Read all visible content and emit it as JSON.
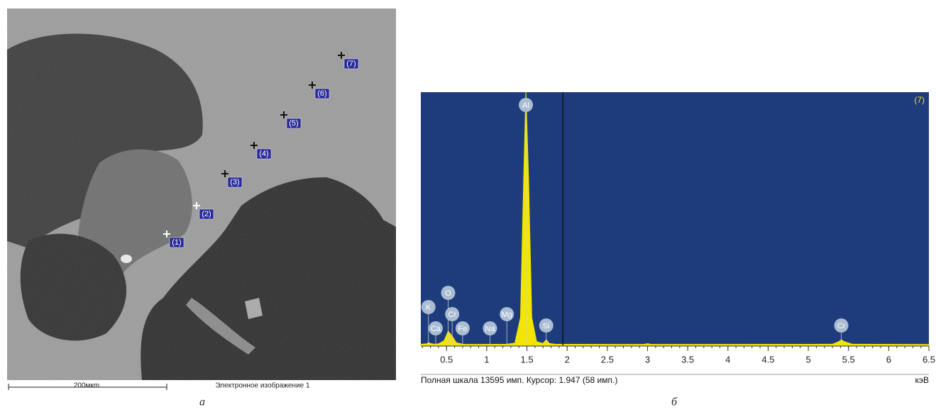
{
  "image": {
    "points": [
      "(1)",
      "(2)",
      "(3)",
      "(4)",
      "(5)",
      "(6)",
      "(7)"
    ],
    "scale_bar": "200мкm",
    "caption": "Электронное изображение 1",
    "panel_label": "а"
  },
  "chart_data": {
    "type": "area",
    "panel_label": "б",
    "corner_label": "(7)",
    "x_unit": "кэВ",
    "status": "Полная шкала 13595 имп. Курсор: 1.947  (58 имп.)",
    "cursor": 1.947,
    "color": "#f2e600",
    "background": "#1e3b7c",
    "x": [
      0.18,
      0.25,
      0.28,
      0.3,
      0.35,
      0.4,
      0.47,
      0.52,
      0.57,
      0.62,
      0.7,
      0.75,
      1.0,
      1.25,
      1.35,
      1.42,
      1.46,
      1.487,
      1.52,
      1.56,
      1.62,
      1.7,
      1.74,
      1.78,
      1.85,
      2.5,
      2.95,
      3.0,
      3.05,
      4,
      5.3,
      5.38,
      5.41,
      5.45,
      5.55,
      6.5
    ],
    "values": [
      60,
      80,
      150,
      100,
      60,
      80,
      250,
      760,
      500,
      150,
      60,
      50,
      50,
      60,
      120,
      1500,
      9000,
      13595,
      9000,
      1500,
      200,
      100,
      300,
      100,
      60,
      50,
      50,
      90,
      50,
      50,
      60,
      200,
      300,
      200,
      60,
      50
    ],
    "xlim": [
      0.18,
      6.5
    ],
    "ylim": [
      0,
      13595
    ],
    "xticks": [
      0.5,
      1,
      1.5,
      2,
      2.5,
      3,
      3.5,
      4,
      4.5,
      5,
      5.5,
      6,
      6.5
    ],
    "annotations": [
      {
        "label": "K",
        "x": 0.31
      },
      {
        "label": "Ca",
        "x": 0.33
      },
      {
        "label": "O",
        "x": 0.52
      },
      {
        "label": "Cr",
        "x": 0.57
      },
      {
        "label": "Fe",
        "x": 0.7
      },
      {
        "label": "Na",
        "x": 1.04
      },
      {
        "label": "Mg",
        "x": 1.25
      },
      {
        "label": "Al",
        "x": 1.487
      },
      {
        "label": "Si",
        "x": 1.74
      },
      {
        "label": "Cr",
        "x": 5.41
      }
    ]
  }
}
